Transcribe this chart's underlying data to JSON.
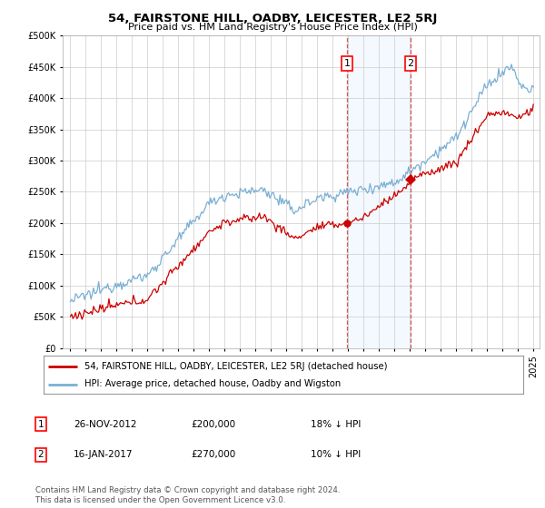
{
  "title": "54, FAIRSTONE HILL, OADBY, LEICESTER, LE2 5RJ",
  "subtitle": "Price paid vs. HM Land Registry's House Price Index (HPI)",
  "legend_label_red": "54, FAIRSTONE HILL, OADBY, LEICESTER, LE2 5RJ (detached house)",
  "legend_label_blue": "HPI: Average price, detached house, Oadby and Wigston",
  "annotation1_date": "26-NOV-2012",
  "annotation1_price": "£200,000",
  "annotation1_hpi": "18% ↓ HPI",
  "annotation2_date": "16-JAN-2017",
  "annotation2_price": "£270,000",
  "annotation2_hpi": "10% ↓ HPI",
  "footer": "Contains HM Land Registry data © Crown copyright and database right 2024.\nThis data is licensed under the Open Government Licence v3.0.",
  "color_red": "#cc0000",
  "color_blue": "#7aafd4",
  "color_shading": "#ddeeff",
  "ylim": [
    0,
    500000
  ],
  "yticks": [
    0,
    50000,
    100000,
    150000,
    200000,
    250000,
    300000,
    350000,
    400000,
    450000,
    500000
  ],
  "background_color": "#ffffff",
  "grid_color": "#cccccc",
  "sale1_x": 2012.917,
  "sale2_x": 2017.042,
  "sale1_y": 200000,
  "sale2_y": 270000,
  "xmin": 1995,
  "xmax": 2025
}
